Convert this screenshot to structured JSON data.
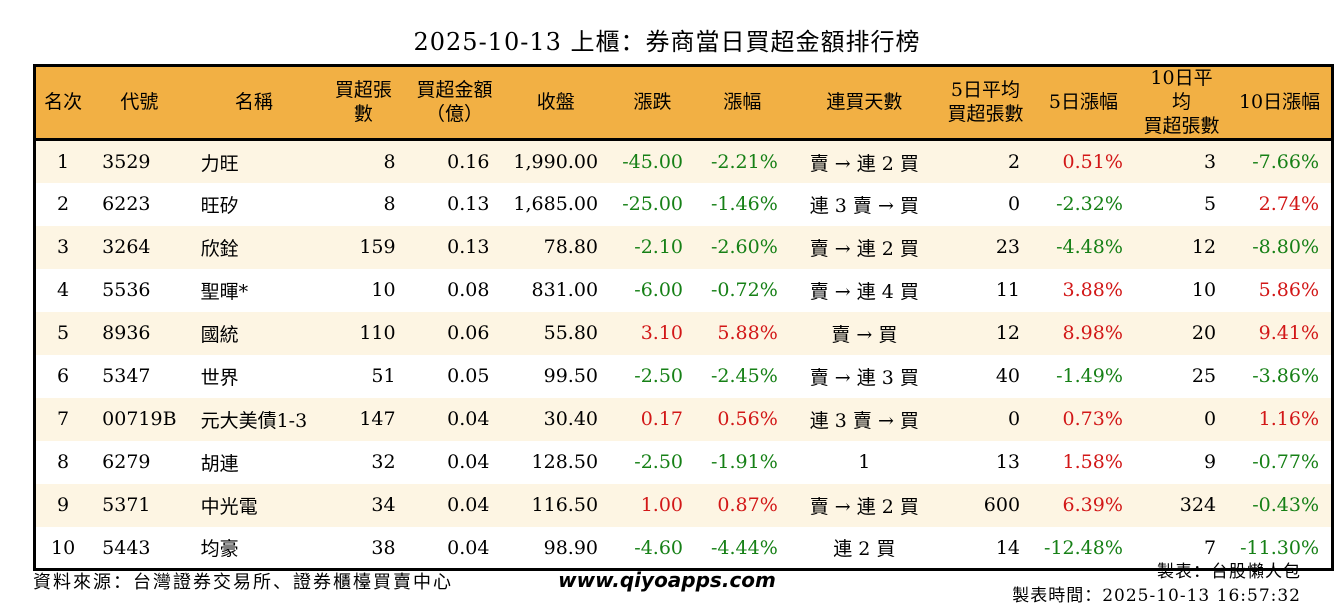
{
  "title": "2025-10-13 上櫃：券商當日買超金額排行榜",
  "table": {
    "headers": [
      "名次",
      "代號",
      "名稱",
      "買超張數",
      "買超金額\n（億）",
      "收盤",
      "漲跌",
      "漲幅",
      "連買天數",
      "5日平均\n買超張數",
      "5日漲幅",
      "10日平均\n買超張數",
      "10日漲幅"
    ],
    "rows": [
      [
        "1",
        "3529",
        "力旺",
        "8",
        "0.16",
        "1,990.00",
        "-45.00",
        "-2.21%",
        "賣 → 連 2 買",
        "2",
        "0.51%",
        "3",
        "-7.66%"
      ],
      [
        "2",
        "6223",
        "旺矽",
        "8",
        "0.13",
        "1,685.00",
        "-25.00",
        "-1.46%",
        "連 3 賣 → 買",
        "0",
        "-2.32%",
        "5",
        "2.74%"
      ],
      [
        "3",
        "3264",
        "欣銓",
        "159",
        "0.13",
        "78.80",
        "-2.10",
        "-2.60%",
        "賣 → 連 2 買",
        "23",
        "-4.48%",
        "12",
        "-8.80%"
      ],
      [
        "4",
        "5536",
        "聖暉*",
        "10",
        "0.08",
        "831.00",
        "-6.00",
        "-0.72%",
        "賣 → 連 4 買",
        "11",
        "3.88%",
        "10",
        "5.86%"
      ],
      [
        "5",
        "8936",
        "國統",
        "110",
        "0.06",
        "55.80",
        "3.10",
        "5.88%",
        "賣 → 買",
        "12",
        "8.98%",
        "20",
        "9.41%"
      ],
      [
        "6",
        "5347",
        "世界",
        "51",
        "0.05",
        "99.50",
        "-2.50",
        "-2.45%",
        "賣 → 連 3 買",
        "40",
        "-1.49%",
        "25",
        "-3.86%"
      ],
      [
        "7",
        "00719B",
        "元大美債1-3",
        "147",
        "0.04",
        "30.40",
        "0.17",
        "0.56%",
        "連 3 賣 → 買",
        "0",
        "0.73%",
        "0",
        "1.16%"
      ],
      [
        "8",
        "6279",
        "胡連",
        "32",
        "0.04",
        "128.50",
        "-2.50",
        "-1.91%",
        "1",
        "13",
        "1.58%",
        "9",
        "-0.77%"
      ],
      [
        "9",
        "5371",
        "中光電",
        "34",
        "0.04",
        "116.50",
        "1.00",
        "0.87%",
        "賣 → 連 2 買",
        "600",
        "6.39%",
        "324",
        "-0.43%"
      ],
      [
        "10",
        "5443",
        "均豪",
        "38",
        "0.04",
        "98.90",
        "-4.60",
        "-4.44%",
        "連 2 買",
        "14",
        "-12.48%",
        "7",
        "-11.30%"
      ]
    ]
  },
  "footer": {
    "source": "資料來源：台灣證券交易所、證券櫃檯買賣中心",
    "website": "www.qiyoapps.com",
    "author": "製表：台股懶人包",
    "generated": "製表時間：2025-10-13 16:57:32"
  },
  "colors": {
    "header_bg": "#F2B044",
    "row_alt_bg": "#FDF5E3",
    "up": "#D21717",
    "down": "#168016"
  }
}
